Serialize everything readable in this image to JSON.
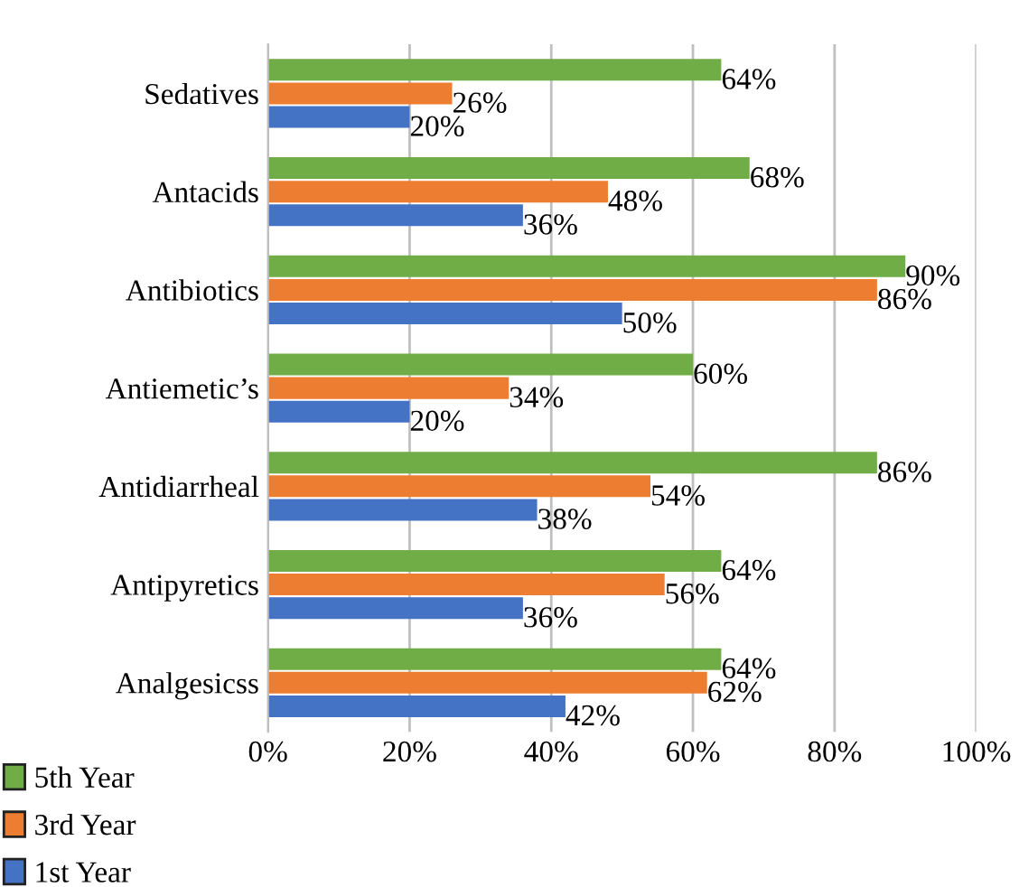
{
  "chart_data": {
    "type": "bar",
    "orientation": "horizontal",
    "categories": [
      "Sedatives",
      "Antacids",
      "Antibiotics",
      "Antiemetic’s",
      "Antidiarrheal",
      "Antipyretics",
      "Analgesicss"
    ],
    "series": [
      {
        "name": "5th Year",
        "color": "#70ad47",
        "values": [
          64,
          68,
          90,
          60,
          86,
          64,
          64
        ],
        "value_labels": [
          "64%",
          "68%",
          "90%",
          "60%",
          "86%",
          "64%",
          "64%"
        ]
      },
      {
        "name": "3rd Year",
        "color": "#ed7d31",
        "values": [
          26,
          48,
          86,
          34,
          54,
          56,
          62
        ],
        "value_labels": [
          "26%",
          "48%",
          "86%",
          "34%",
          "54%",
          "56%",
          "62%"
        ]
      },
      {
        "name": "1st Year",
        "color": "#4472c4",
        "values": [
          20,
          36,
          50,
          20,
          38,
          36,
          42
        ],
        "value_labels": [
          "20%",
          "36%",
          "50%",
          "20%",
          "38%",
          "36%",
          "42%"
        ]
      }
    ],
    "xlim": [
      0,
      100
    ],
    "xticks": [
      {
        "value": 0,
        "label": "0%"
      },
      {
        "value": 20,
        "label": "20%"
      },
      {
        "value": 40,
        "label": "40%"
      },
      {
        "value": 60,
        "label": "60%"
      },
      {
        "value": 80,
        "label": "80%"
      },
      {
        "value": 100,
        "label": "100%"
      }
    ],
    "grid": "x",
    "legend": "bottom left"
  }
}
